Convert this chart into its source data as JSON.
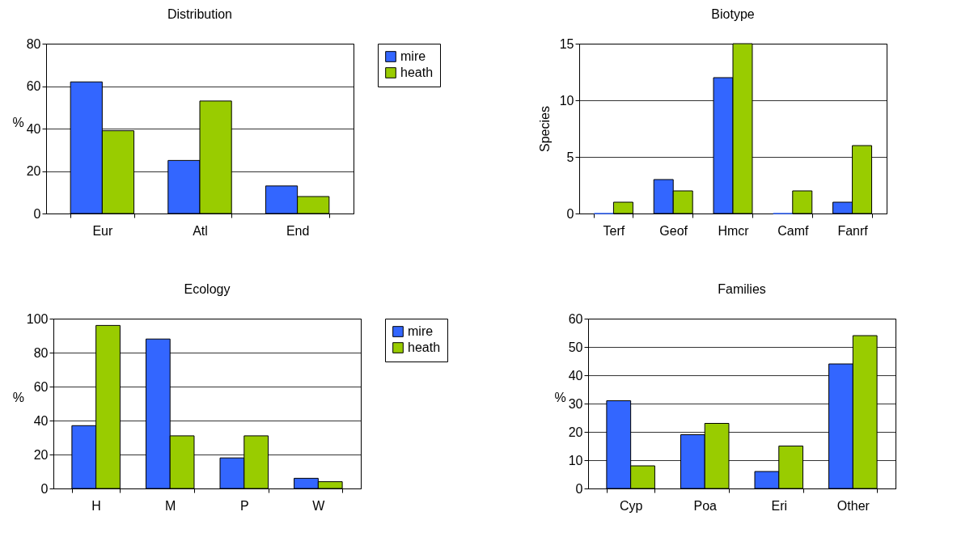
{
  "chart_data": [
    {
      "type": "bar",
      "title": "Distribution",
      "ylabel": "%",
      "categories": [
        "Eur",
        "Atl",
        "End"
      ],
      "series": [
        {
          "name": "mire",
          "color": "#3366ff",
          "values": [
            62,
            25,
            13
          ]
        },
        {
          "name": "heath",
          "color": "#99cc00",
          "values": [
            39,
            53,
            8
          ]
        }
      ],
      "ylim": [
        0,
        80
      ],
      "yticks": [
        0,
        20,
        40,
        60,
        80
      ],
      "grid": "y",
      "legend": "right"
    },
    {
      "type": "bar",
      "title": "Biotype",
      "ylabel": "Species",
      "categories": [
        "Terf",
        "Geof",
        "Hmcr",
        "Camf",
        "Fanrf"
      ],
      "series": [
        {
          "color": "#3366ff",
          "values": [
            0,
            3,
            12,
            0,
            1
          ]
        },
        {
          "color": "#99cc00",
          "values": [
            1,
            2,
            15,
            2,
            6
          ]
        }
      ],
      "ylim": [
        0,
        15
      ],
      "yticks": [
        0,
        5,
        10,
        15
      ],
      "grid": "y",
      "legend": false
    },
    {
      "type": "bar",
      "title": "Ecology",
      "ylabel": "%",
      "categories": [
        "H",
        "M",
        "P",
        "W"
      ],
      "series": [
        {
          "name": "mire",
          "color": "#3366ff",
          "values": [
            37,
            88,
            18,
            6
          ]
        },
        {
          "name": "heath",
          "color": "#99cc00",
          "values": [
            96,
            31,
            31,
            4
          ]
        }
      ],
      "ylim": [
        0,
        100
      ],
      "yticks": [
        0,
        20,
        40,
        60,
        80,
        100
      ],
      "grid": "y",
      "legend": "right"
    },
    {
      "type": "bar",
      "title": "Families",
      "ylabel": "%",
      "categories": [
        "Cyp",
        "Poa",
        "Eri",
        "Other"
      ],
      "series": [
        {
          "color": "#3366ff",
          "values": [
            31,
            19,
            6,
            44
          ]
        },
        {
          "color": "#99cc00",
          "values": [
            8,
            23,
            15,
            54
          ]
        }
      ],
      "ylim": [
        0,
        60
      ],
      "yticks": [
        0,
        10,
        20,
        30,
        40,
        50,
        60
      ],
      "grid": "y",
      "legend": false
    }
  ]
}
